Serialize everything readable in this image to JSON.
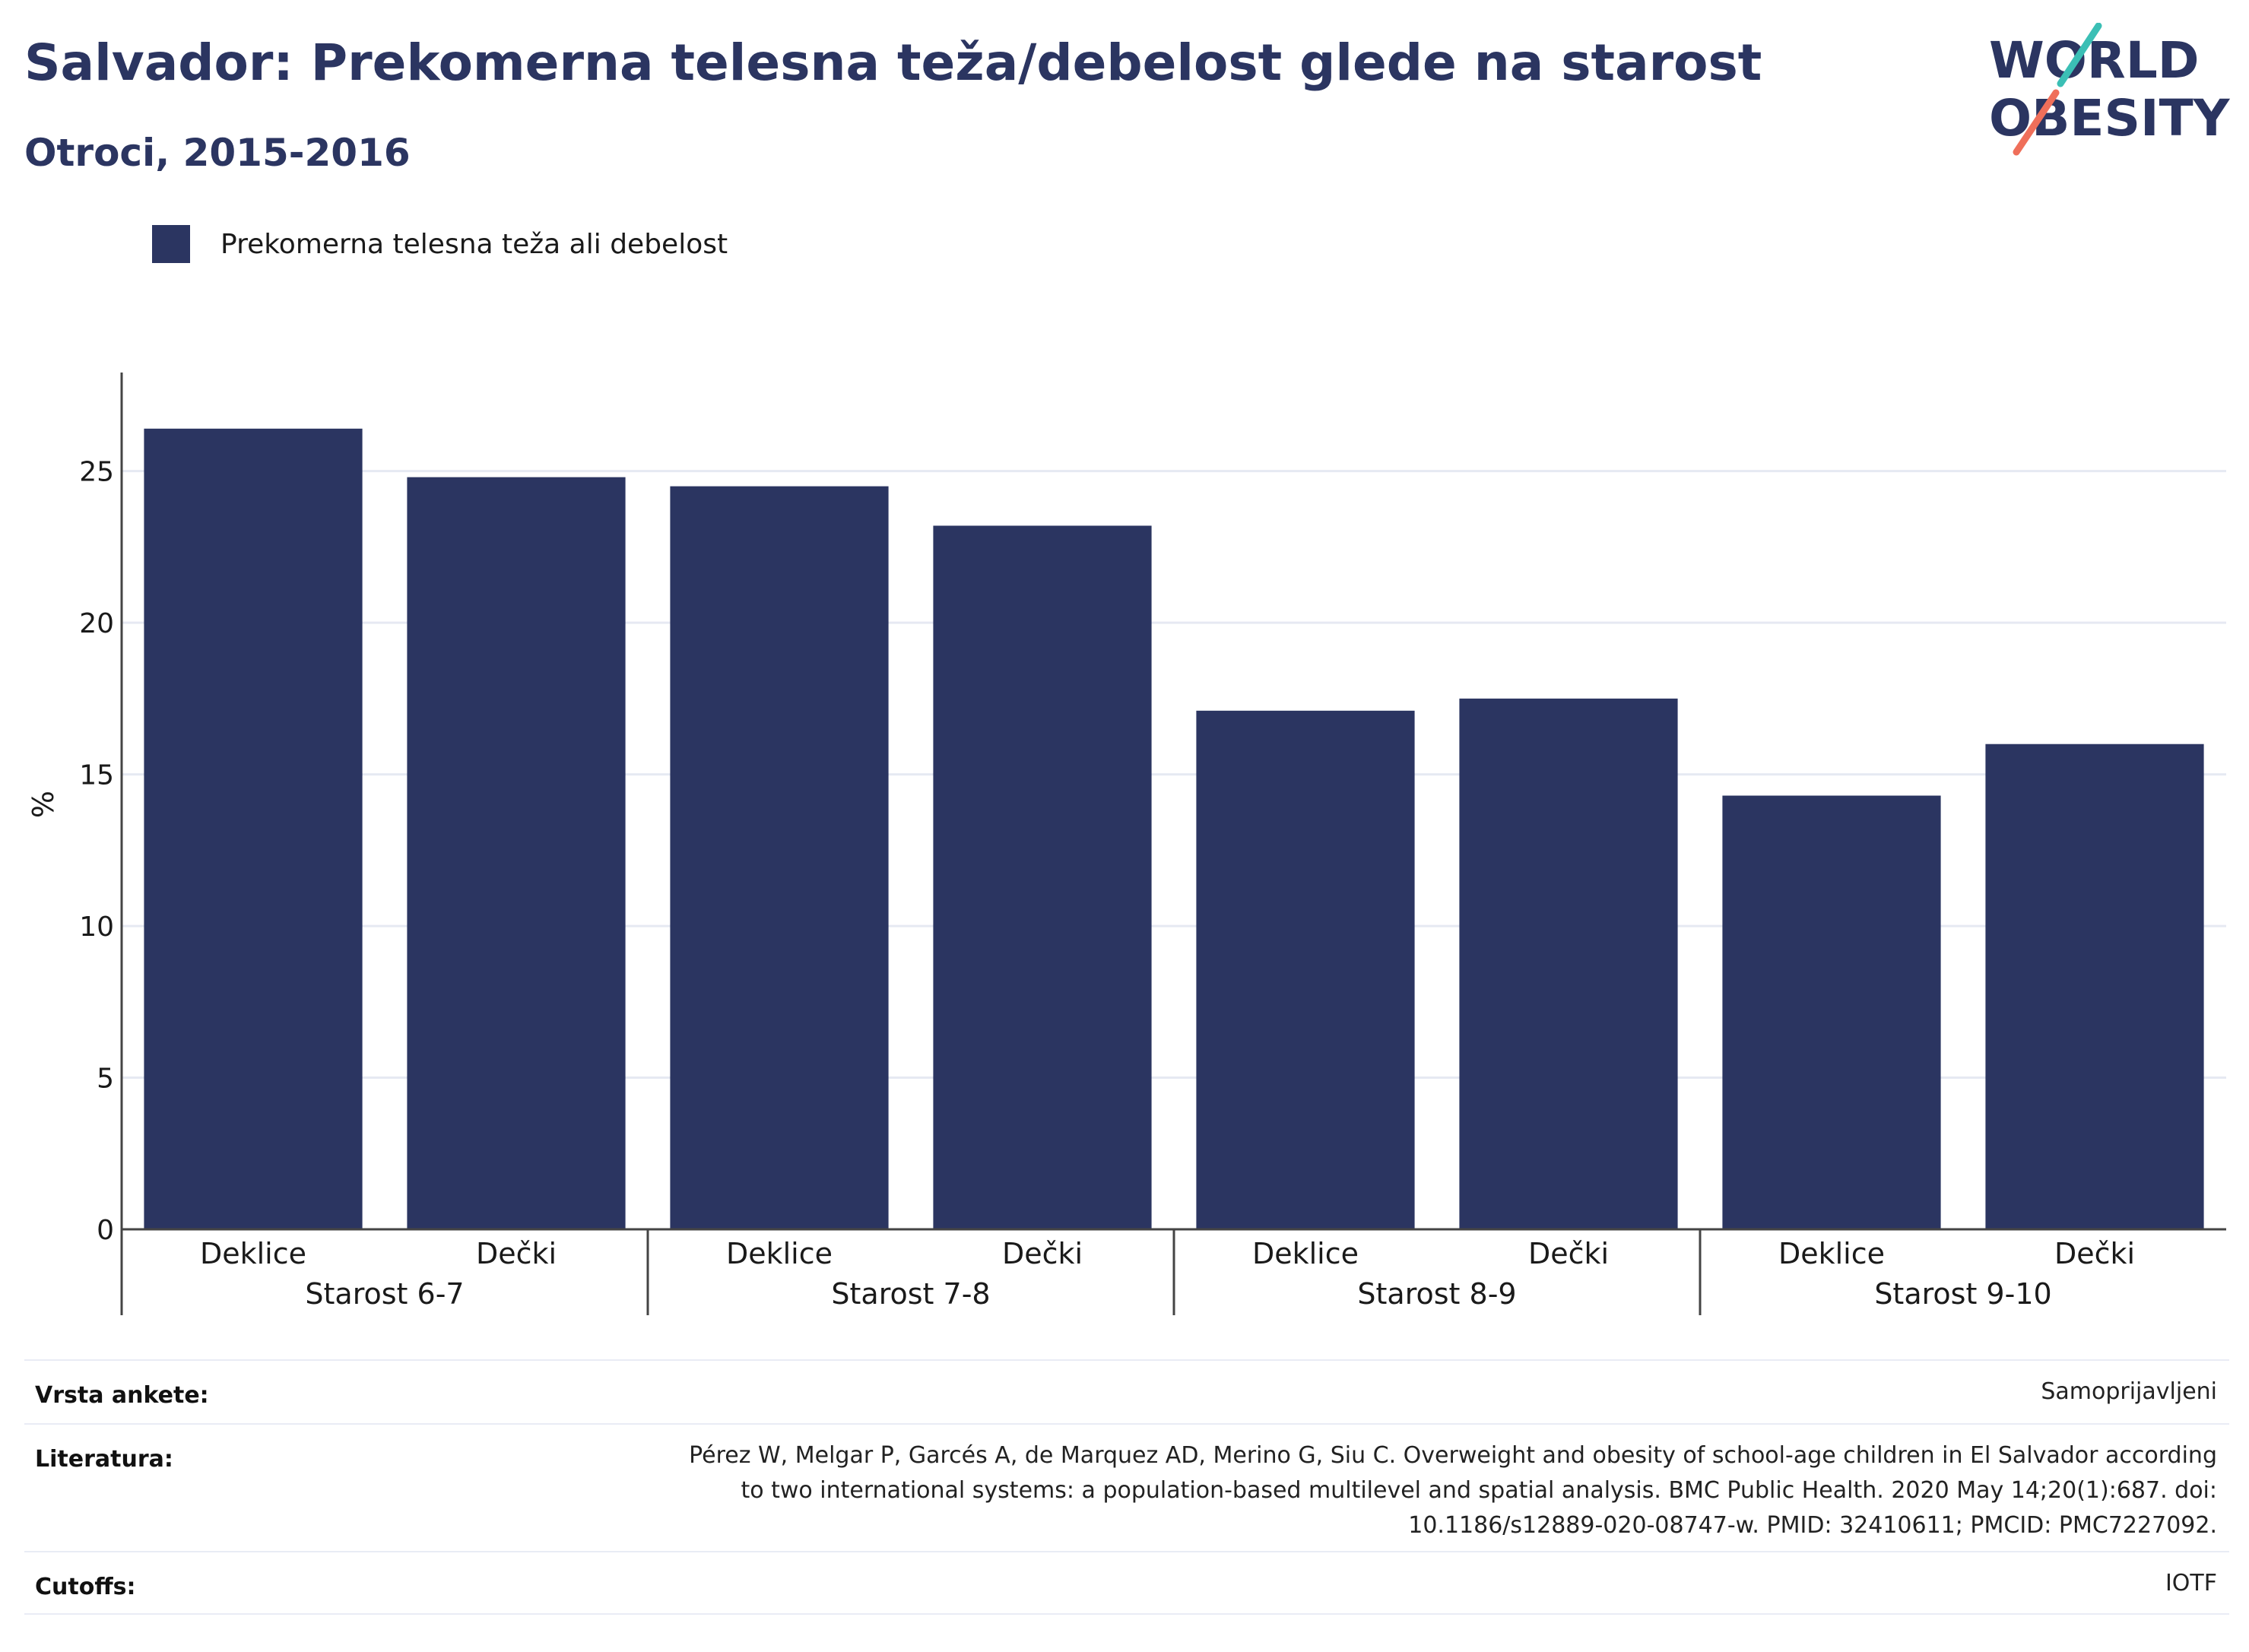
{
  "header": {
    "title": "Salvador: Prekomerna telesna teža/debelost glede na starost",
    "subtitle": "Otroci, 2015-2016"
  },
  "logo": {
    "line1": "WORLD",
    "line2": "OBESITY",
    "icon": "world-obesity-logo"
  },
  "legend": {
    "label": "Prekomerna telesna teža ali debelost"
  },
  "colors": {
    "bar": "#2b3561",
    "title": "#2b3561",
    "grid": "#e6e9f2",
    "logo_teal": "#3bbfb5",
    "logo_coral": "#ef6f5a"
  },
  "chart_data": {
    "type": "bar",
    "ylabel": "%",
    "ylim": [
      0,
      28
    ],
    "yticks": [
      0,
      5,
      10,
      15,
      20,
      25
    ],
    "grid": true,
    "legend_position": "top-left",
    "groups": [
      {
        "label": "Starost 6-7",
        "categories": [
          "Deklice",
          "Dečki"
        ],
        "values": [
          26.4,
          24.8
        ]
      },
      {
        "label": "Starost 7-8",
        "categories": [
          "Deklice",
          "Dečki"
        ],
        "values": [
          24.5,
          23.2
        ]
      },
      {
        "label": "Starost 8-9",
        "categories": [
          "Deklice",
          "Dečki"
        ],
        "values": [
          17.1,
          17.5
        ]
      },
      {
        "label": "Starost 9-10",
        "categories": [
          "Deklice",
          "Dečki"
        ],
        "values": [
          14.3,
          16.0
        ]
      }
    ],
    "series": [
      {
        "name": "Prekomerna telesna teža ali debelost"
      }
    ]
  },
  "meta": {
    "survey_type": {
      "label": "Vrsta ankete:",
      "value": "Samoprijavljeni"
    },
    "literature": {
      "label": "Literatura:",
      "lines": [
        "Pérez W, Melgar P, Garcés A, de Marquez AD, Merino G, Siu C. Overweight and obesity of school-age children in El Salvador according",
        "to two international systems: a population-based multilevel and spatial analysis. BMC Public Health. 2020 May 14;20(1):687. doi:",
        "10.1186/s12889-020-08747-w. PMID: 32410611; PMCID: PMC7227092."
      ]
    },
    "cutoffs": {
      "label": "Cutoffs:",
      "value": "IOTF"
    }
  }
}
